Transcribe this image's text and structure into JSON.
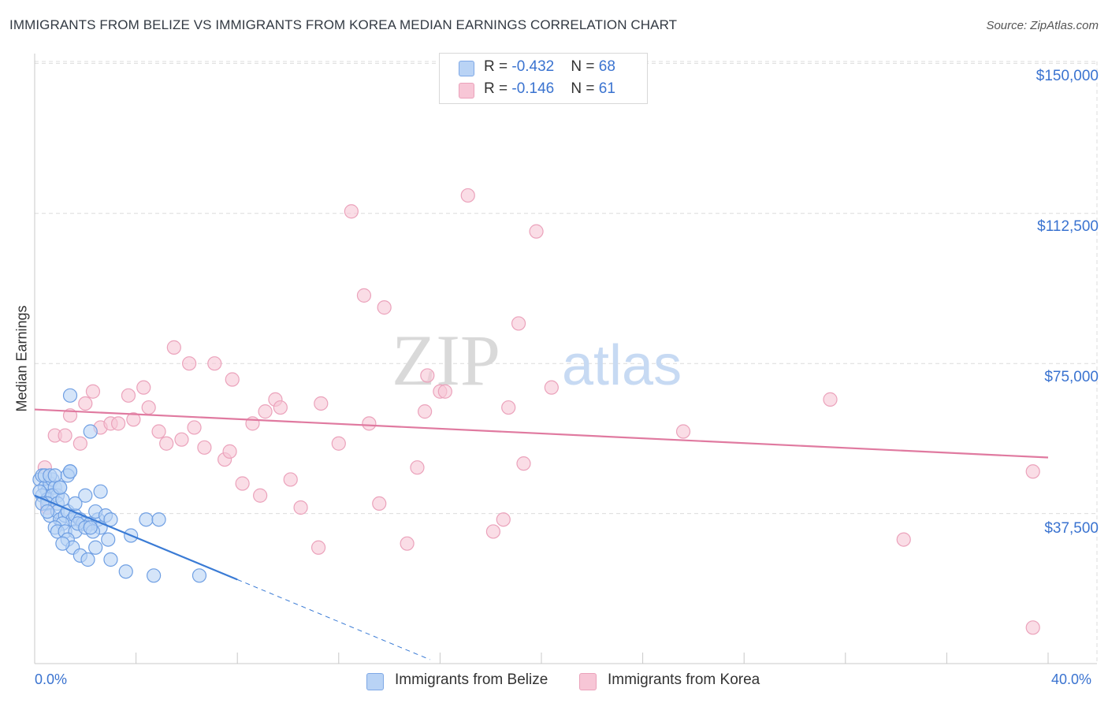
{
  "title": "IMMIGRANTS FROM BELIZE VS IMMIGRANTS FROM KOREA MEDIAN EARNINGS CORRELATION CHART",
  "source": "Source: ZipAtlas.com",
  "watermark": {
    "zip": "ZIP",
    "atlas": "atlas"
  },
  "legend_top": {
    "belize": {
      "r_label": "R = ",
      "r_value": "-0.432",
      "n_label": "N = ",
      "n_value": "68"
    },
    "korea": {
      "r_label": "R = ",
      "r_value": "-0.146",
      "n_label": "N = ",
      "n_value": "61"
    }
  },
  "legend_bottom": {
    "belize": "Immigrants from Belize",
    "korea": "Immigrants from Korea"
  },
  "x_axis": {
    "min_label": "0.0%",
    "max_label": "40.0%"
  },
  "y_axis": {
    "title": "Median Earnings",
    "ticks": [
      "$150,000",
      "$112,500",
      "$75,000",
      "$37,500"
    ]
  },
  "colors": {
    "belize": "#3a7bd5",
    "korea": "#e07aa0",
    "belize_fill": "#b9d3f5",
    "korea_fill": "#f7c6d6",
    "accent": "#3a73d0"
  },
  "chart_data": {
    "type": "scatter",
    "title": "IMMIGRANTS FROM BELIZE VS IMMIGRANTS FROM KOREA MEDIAN EARNINGS CORRELATION CHART",
    "xlabel": "",
    "ylabel": "Median Earnings",
    "xlim": [
      0,
      40
    ],
    "ylim": [
      0,
      155000
    ],
    "yticks": [
      37500,
      75000,
      112500,
      150000
    ],
    "series": [
      {
        "name": "Immigrants from Belize",
        "r": -0.432,
        "n": 68,
        "trend": {
          "x1": 0,
          "y1": 42000,
          "x2": 8,
          "y2": 21000,
          "dash_to_x": 15.6,
          "dash_to_y": 1000
        },
        "points": [
          [
            0.2,
            46
          ],
          [
            0.3,
            47
          ],
          [
            0.4,
            44
          ],
          [
            0.5,
            43
          ],
          [
            0.6,
            45
          ],
          [
            0.7,
            46
          ],
          [
            0.8,
            44
          ],
          [
            0.3,
            42
          ],
          [
            0.5,
            41
          ],
          [
            0.9,
            42
          ],
          [
            0.4,
            47
          ],
          [
            0.6,
            47
          ],
          [
            0.8,
            47
          ],
          [
            1.0,
            44
          ],
          [
            0.2,
            43
          ],
          [
            0.7,
            42
          ],
          [
            0.5,
            40
          ],
          [
            0.9,
            40
          ],
          [
            1.1,
            41
          ],
          [
            0.3,
            40
          ],
          [
            1.4,
            48
          ],
          [
            1.3,
            47
          ],
          [
            0.6,
            37
          ],
          [
            0.9,
            38
          ],
          [
            1.0,
            36
          ],
          [
            1.2,
            37
          ],
          [
            1.3,
            38
          ],
          [
            1.5,
            36
          ],
          [
            1.6,
            37
          ],
          [
            1.8,
            36
          ],
          [
            1.9,
            35
          ],
          [
            2.2,
            35
          ],
          [
            2.5,
            36
          ],
          [
            2.6,
            34
          ],
          [
            2.4,
            38
          ],
          [
            2.8,
            37
          ],
          [
            3.0,
            36
          ],
          [
            1.1,
            35
          ],
          [
            0.8,
            34
          ],
          [
            0.9,
            33
          ],
          [
            1.2,
            33
          ],
          [
            1.6,
            33
          ],
          [
            1.7,
            35
          ],
          [
            2.0,
            34
          ],
          [
            2.3,
            33
          ],
          [
            1.3,
            31
          ],
          [
            1.5,
            29
          ],
          [
            1.1,
            30
          ],
          [
            2.4,
            29
          ],
          [
            1.8,
            27
          ],
          [
            2.1,
            26
          ],
          [
            3.0,
            26
          ],
          [
            2.9,
            31
          ],
          [
            3.6,
            23
          ],
          [
            2.2,
            34
          ],
          [
            4.4,
            36
          ],
          [
            4.9,
            36
          ],
          [
            4.7,
            22
          ],
          [
            6.5,
            22
          ],
          [
            1.4,
            48
          ],
          [
            1.4,
            67
          ],
          [
            2.2,
            58
          ],
          [
            2.0,
            42
          ],
          [
            1.6,
            40
          ],
          [
            1.0,
            44
          ],
          [
            0.5,
            38
          ],
          [
            2.6,
            43
          ],
          [
            3.8,
            32
          ]
        ]
      },
      {
        "name": "Immigrants from Korea",
        "r": -0.146,
        "n": 61,
        "trend": {
          "x1": 0,
          "y1": 63500,
          "x2": 40,
          "y2": 51500
        },
        "points": [
          [
            0.4,
            49
          ],
          [
            0.8,
            57
          ],
          [
            1.2,
            57
          ],
          [
            1.4,
            62
          ],
          [
            1.8,
            55
          ],
          [
            2.0,
            65
          ],
          [
            2.3,
            68
          ],
          [
            2.6,
            59
          ],
          [
            3.0,
            60
          ],
          [
            3.3,
            60
          ],
          [
            3.7,
            67
          ],
          [
            3.9,
            61
          ],
          [
            4.3,
            69
          ],
          [
            4.5,
            64
          ],
          [
            4.9,
            58
          ],
          [
            5.2,
            55
          ],
          [
            5.5,
            79
          ],
          [
            5.8,
            56
          ],
          [
            6.1,
            75
          ],
          [
            6.3,
            59
          ],
          [
            6.7,
            54
          ],
          [
            7.1,
            75
          ],
          [
            7.5,
            51
          ],
          [
            7.7,
            53
          ],
          [
            7.8,
            71
          ],
          [
            8.2,
            45
          ],
          [
            8.6,
            60
          ],
          [
            8.9,
            42
          ],
          [
            9.1,
            63
          ],
          [
            9.5,
            66
          ],
          [
            9.7,
            64
          ],
          [
            10.1,
            46
          ],
          [
            10.5,
            39
          ],
          [
            11.2,
            29
          ],
          [
            11.3,
            65
          ],
          [
            12.0,
            55
          ],
          [
            12.5,
            113
          ],
          [
            13.0,
            92
          ],
          [
            13.2,
            60
          ],
          [
            13.6,
            40
          ],
          [
            13.8,
            89
          ],
          [
            14.7,
            30
          ],
          [
            15.1,
            49
          ],
          [
            15.4,
            63
          ],
          [
            15.5,
            72
          ],
          [
            16.0,
            68
          ],
          [
            16.2,
            68
          ],
          [
            17.1,
            117
          ],
          [
            18.1,
            33
          ],
          [
            18.5,
            36
          ],
          [
            18.7,
            64
          ],
          [
            19.1,
            85
          ],
          [
            19.3,
            50
          ],
          [
            19.8,
            108
          ],
          [
            20.4,
            69
          ],
          [
            25.6,
            58
          ],
          [
            31.4,
            66
          ],
          [
            34.3,
            31
          ],
          [
            39.4,
            48
          ],
          [
            39.4,
            9
          ],
          [
            0.5,
            39
          ]
        ]
      }
    ]
  }
}
